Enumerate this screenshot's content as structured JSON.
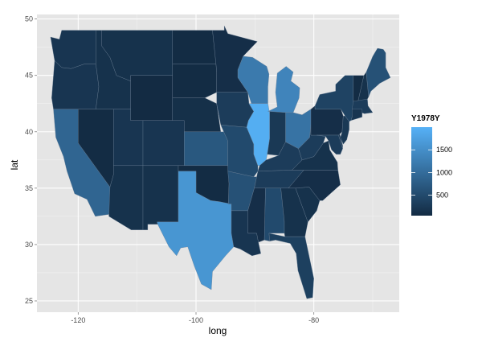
{
  "chart_data": {
    "type": "heatmap",
    "xlabel": "long",
    "ylabel": "lat",
    "xlim": [
      -127,
      -65.5
    ],
    "ylim": [
      24,
      50.4
    ],
    "x_ticks": [
      -120,
      -100,
      -80
    ],
    "y_ticks": [
      25,
      30,
      35,
      40,
      45,
      50
    ],
    "grid": true,
    "legend": {
      "title": "Y1978Y",
      "position": "right",
      "ticks": [
        500,
        1000,
        1500
      ],
      "range": [
        50,
        2000
      ],
      "low_color": "#132B43",
      "high_color": "#56B1F7"
    },
    "states": [
      {
        "name": "Washington",
        "value": 200
      },
      {
        "name": "Oregon",
        "value": 200
      },
      {
        "name": "California",
        "value": 900
      },
      {
        "name": "Nevada",
        "value": 60
      },
      {
        "name": "Idaho",
        "value": 150
      },
      {
        "name": "Montana",
        "value": 150
      },
      {
        "name": "Wyoming",
        "value": 40
      },
      {
        "name": "Utah",
        "value": 200
      },
      {
        "name": "Arizona",
        "value": 150
      },
      {
        "name": "Colorado",
        "value": 200
      },
      {
        "name": "New Mexico",
        "value": 150
      },
      {
        "name": "North Dakota",
        "value": 60
      },
      {
        "name": "South Dakota",
        "value": 60
      },
      {
        "name": "Nebraska",
        "value": 120
      },
      {
        "name": "Kansas",
        "value": 700
      },
      {
        "name": "Oklahoma",
        "value": 60
      },
      {
        "name": "Texas",
        "value": 1600
      },
      {
        "name": "Minnesota",
        "value": 100
      },
      {
        "name": "Iowa",
        "value": 300
      },
      {
        "name": "Missouri",
        "value": 500
      },
      {
        "name": "Arkansas",
        "value": 600
      },
      {
        "name": "Louisiana",
        "value": 200
      },
      {
        "name": "Wisconsin",
        "value": 1200
      },
      {
        "name": "Illinois",
        "value": 1950
      },
      {
        "name": "Michigan",
        "value": 1350
      },
      {
        "name": "Indiana",
        "value": 250
      },
      {
        "name": "Ohio",
        "value": 1100
      },
      {
        "name": "Kentucky",
        "value": 300
      },
      {
        "name": "Tennessee",
        "value": 300
      },
      {
        "name": "Mississippi",
        "value": 100
      },
      {
        "name": "Alabama",
        "value": 500
      },
      {
        "name": "Georgia",
        "value": 150
      },
      {
        "name": "Florida",
        "value": 350
      },
      {
        "name": "South Carolina",
        "value": 150
      },
      {
        "name": "North Carolina",
        "value": 100
      },
      {
        "name": "Virginia",
        "value": 150
      },
      {
        "name": "West Virginia",
        "value": 300
      },
      {
        "name": "Pennsylvania",
        "value": 100
      },
      {
        "name": "New York",
        "value": 400
      },
      {
        "name": "Maryland",
        "value": 300
      },
      {
        "name": "Delaware",
        "value": 200
      },
      {
        "name": "New Jersey",
        "value": 250
      },
      {
        "name": "Vermont",
        "value": 60
      },
      {
        "name": "New Hampshire",
        "value": 150
      },
      {
        "name": "Maine",
        "value": 600
      },
      {
        "name": "Massachusetts",
        "value": 300
      },
      {
        "name": "Connecticut",
        "value": 200
      }
    ]
  }
}
